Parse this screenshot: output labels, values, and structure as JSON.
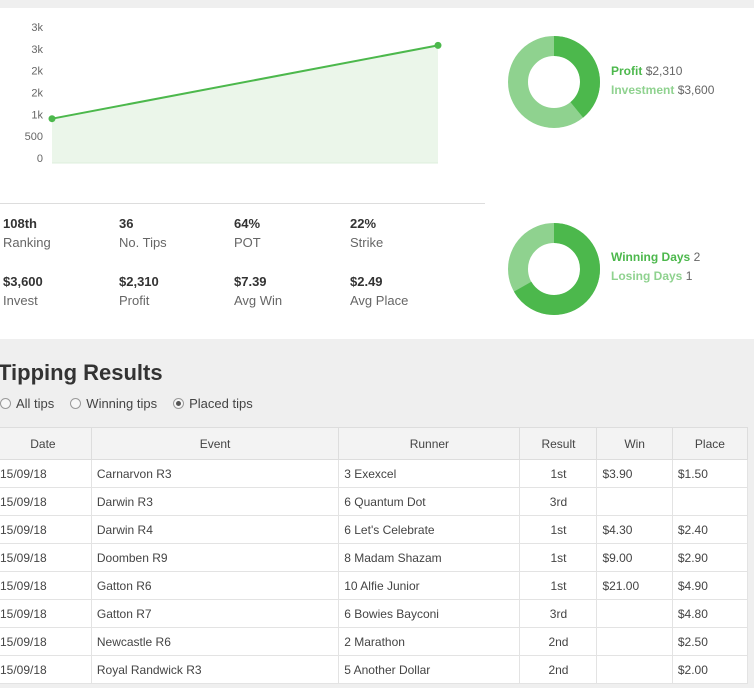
{
  "chart_data": {
    "type": "area",
    "y_tick_labels": [
      "3k",
      "3k",
      "2k",
      "2k",
      "1k",
      "500",
      "0"
    ],
    "x": [
      0,
      1
    ],
    "values": [
      0.3,
      0.86
    ],
    "ylim": [
      0,
      1
    ],
    "color": "#4cb84c",
    "fill": "#ebf6ea"
  },
  "stats": [
    {
      "value": "108th",
      "label": "Ranking"
    },
    {
      "value": "36",
      "label": "No. Tips"
    },
    {
      "value": "64%",
      "label": "POT"
    },
    {
      "value": "22%",
      "label": "Strike"
    },
    {
      "value": "$3,600",
      "label": "Invest"
    },
    {
      "value": "$2,310",
      "label": "Profit"
    },
    {
      "value": "$7.39",
      "label": "Avg Win"
    },
    {
      "value": "$2.49",
      "label": "Avg Place"
    }
  ],
  "donut1": {
    "profit_label": "Profit",
    "profit_value": "$2,310",
    "investment_label": "Investment",
    "investment_value": "$3,600",
    "fraction": 0.39
  },
  "donut2": {
    "winning_label": "Winning Days",
    "winning_value": "2",
    "losing_label": "Losing Days",
    "losing_value": "1",
    "fraction": 0.667
  },
  "colors": {
    "primary": "#4cb84c",
    "secondary": "#8fd28f"
  },
  "section_title": "Tipping Results",
  "filters": {
    "all": "All tips",
    "winning": "Winning tips",
    "placed": "Placed tips",
    "selected": "placed"
  },
  "table": {
    "headers": [
      "Date",
      "Event",
      "Runner",
      "Result",
      "Win",
      "Place"
    ],
    "rows": [
      [
        "15/09/18",
        "Carnarvon R3",
        "3  Exexcel",
        "1st",
        "$3.90",
        "$1.50"
      ],
      [
        "15/09/18",
        "Darwin R3",
        "6  Quantum Dot",
        "3rd",
        "",
        ""
      ],
      [
        "15/09/18",
        "Darwin R4",
        "6  Let's Celebrate",
        "1st",
        "$4.30",
        "$2.40"
      ],
      [
        "15/09/18",
        "Doomben R9",
        "8  Madam Shazam",
        "1st",
        "$9.00",
        "$2.90"
      ],
      [
        "15/09/18",
        "Gatton R6",
        "10  Alfie Junior",
        "1st",
        "$21.00",
        "$4.90"
      ],
      [
        "15/09/18",
        "Gatton R7",
        "6  Bowies Bayconi",
        "3rd",
        "",
        "$4.80"
      ],
      [
        "15/09/18",
        "Newcastle R6",
        "2  Marathon",
        "2nd",
        "",
        "$2.50"
      ],
      [
        "15/09/18",
        "Royal Randwick R3",
        "5  Another Dollar",
        "2nd",
        "",
        "$2.00"
      ]
    ]
  }
}
